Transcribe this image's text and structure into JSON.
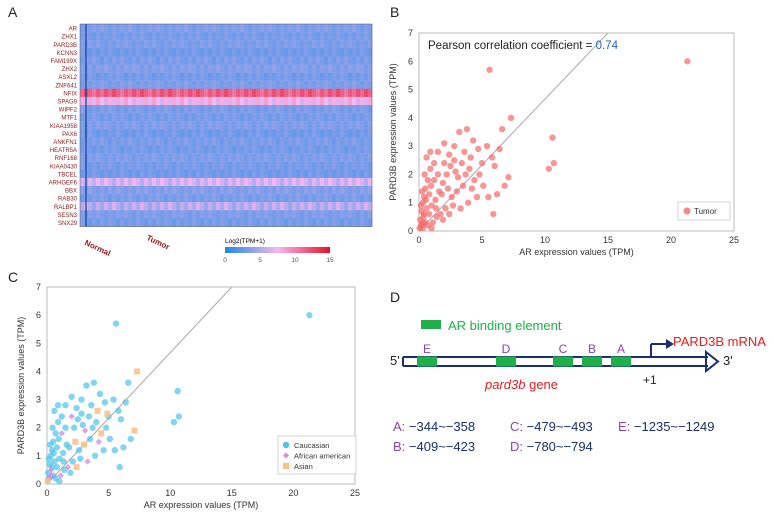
{
  "panel_labels": {
    "A": "A",
    "B": "B",
    "C": "C",
    "D": "D"
  },
  "chart_data": [
    {
      "id": "A",
      "type": "heatmap",
      "rows": [
        "AR",
        "ZHX1",
        "PARD3B",
        "KCNN3",
        "FAM199X",
        "ZHX2",
        "ASXL2",
        "ZNF641",
        "NFIX",
        "SPAG9",
        "WIPF2",
        "MTF1",
        "KIAA1958",
        "PAX6",
        "ANKFN1",
        "HEATR5A",
        "RNF168",
        "KIAA0430",
        "TBCEL",
        "ARHGEF6",
        "BBX",
        "RAB30",
        "RALBP1",
        "SESN3",
        "SNX29"
      ],
      "groups": [
        "Normal",
        "Tumor"
      ],
      "row_levels": [
        3.5,
        3.2,
        3.4,
        3.0,
        3.3,
        3.6,
        3.1,
        3.4,
        11.5,
        7.5,
        3.3,
        3.2,
        3.5,
        3.0,
        3.3,
        3.1,
        3.4,
        3.2,
        3.0,
        6.5,
        3.6,
        3.3,
        5.5,
        3.4,
        3.1
      ],
      "colorbar_title": "Log2(TPM+1)",
      "colorbar_ticks": [
        0,
        5,
        10,
        15
      ],
      "colorbar_colors": [
        "#1e88e5",
        "#f5b8f0",
        "#e8102a"
      ]
    },
    {
      "id": "B",
      "type": "scatter",
      "xlabel": "AR expression values (TPM)",
      "ylabel": "PARD3B expression values (TPM)",
      "xlim": [
        0,
        25
      ],
      "ylim": [
        0,
        7
      ],
      "xticks": [
        0,
        5,
        10,
        15,
        20,
        25
      ],
      "yticks": [
        0,
        1,
        2,
        3,
        4,
        5,
        6,
        7
      ],
      "annotation": "Pearson correlation coefficient = ",
      "annotation_value": "0.74",
      "fit_line": [
        [
          0,
          0
        ],
        [
          15,
          7
        ]
      ],
      "legend": [
        "Tumor"
      ],
      "series": [
        {
          "name": "Tumor",
          "color": "#f26b6b",
          "points": [
            [
              21.3,
              6.0
            ],
            [
              5.6,
              5.7
            ],
            [
              7.3,
              4.0
            ],
            [
              10.6,
              3.3
            ],
            [
              10.7,
              2.4
            ],
            [
              10.3,
              2.2
            ],
            [
              6.6,
              3.6
            ],
            [
              5.4,
              3.0
            ],
            [
              5.8,
              2.6
            ],
            [
              4.7,
              2.9
            ],
            [
              4.3,
              3.2
            ],
            [
              3.8,
              3.6
            ],
            [
              3.2,
              3.5
            ],
            [
              2.8,
              3.0
            ],
            [
              2.4,
              2.7
            ],
            [
              2.0,
              3.1
            ],
            [
              1.5,
              2.8
            ],
            [
              1.2,
              2.4
            ],
            [
              0.9,
              2.2
            ],
            [
              0.7,
              1.8
            ],
            [
              0.5,
              1.5
            ],
            [
              0.4,
              1.2
            ],
            [
              0.3,
              1.0
            ],
            [
              0.2,
              0.7
            ],
            [
              0.1,
              0.4
            ],
            [
              0.15,
              0.2
            ],
            [
              0.3,
              0.1
            ],
            [
              0.5,
              0.3
            ],
            [
              0.8,
              0.6
            ],
            [
              1.0,
              0.9
            ],
            [
              1.3,
              1.1
            ],
            [
              1.6,
              1.4
            ],
            [
              1.9,
              1.7
            ],
            [
              2.2,
              2.0
            ],
            [
              2.5,
              2.3
            ],
            [
              2.9,
              2.1
            ],
            [
              3.1,
              1.9
            ],
            [
              3.4,
              2.4
            ],
            [
              3.7,
              2.0
            ],
            [
              4.0,
              2.2
            ],
            [
              4.4,
              1.8
            ],
            [
              4.8,
              2.0
            ],
            [
              5.1,
              1.6
            ],
            [
              5.5,
              1.2
            ],
            [
              5.9,
              0.6
            ],
            [
              6.2,
              1.3
            ],
            [
              6.8,
              1.6
            ],
            [
              7.1,
              1.9
            ],
            [
              6.0,
              2.3
            ],
            [
              4.6,
              1.2
            ],
            [
              3.9,
              1.0
            ],
            [
              3.3,
              0.8
            ],
            [
              2.7,
              0.9
            ],
            [
              2.1,
              0.8
            ],
            [
              1.7,
              0.6
            ],
            [
              1.4,
              0.5
            ],
            [
              1.1,
              0.3
            ],
            [
              0.6,
              0.8
            ],
            [
              0.35,
              0.5
            ],
            [
              0.25,
              1.4
            ],
            [
              0.45,
              2.0
            ],
            [
              0.6,
              2.6
            ],
            [
              0.9,
              2.8
            ],
            [
              1.8,
              1.3
            ],
            [
              2.3,
              1.5
            ],
            [
              2.6,
              1.2
            ],
            [
              3.0,
              1.4
            ],
            [
              3.5,
              1.6
            ],
            [
              4.2,
              1.5
            ],
            [
              0.7,
              0.2
            ],
            [
              1.0,
              0.1
            ],
            [
              0.2,
              0.2
            ],
            [
              0.05,
              0.1
            ],
            [
              0.4,
              0.6
            ],
            [
              0.8,
              1.3
            ],
            [
              1.2,
              1.8
            ],
            [
              1.5,
              2.0
            ],
            [
              2.0,
              2.4
            ],
            [
              2.8,
              2.5
            ],
            [
              3.6,
              2.8
            ],
            [
              4.1,
              2.6
            ],
            [
              5.0,
              2.4
            ],
            [
              6.4,
              2.9
            ],
            [
              1.9,
              0.4
            ],
            [
              2.4,
              0.6
            ],
            [
              0.55,
              1.1
            ],
            [
              0.95,
              1.6
            ],
            [
              1.35,
              0.8
            ],
            [
              0.15,
              0.9
            ],
            [
              0.3,
              0.3
            ]
          ]
        }
      ]
    },
    {
      "id": "C",
      "type": "scatter",
      "xlabel": "AR expression values (TPM)",
      "ylabel": "PARD3B expression values (TPM)",
      "xlim": [
        0,
        25
      ],
      "ylim": [
        0,
        7
      ],
      "xticks": [
        0,
        5,
        10,
        15,
        20,
        25
      ],
      "yticks": [
        0,
        1,
        2,
        3,
        4,
        5,
        6,
        7
      ],
      "fit_line": [
        [
          0,
          0
        ],
        [
          15,
          7
        ]
      ],
      "legend": [
        "Caucasian",
        "African american",
        "Asian"
      ],
      "series": [
        {
          "name": "Caucasian",
          "color": "#4fc3e8",
          "marker": "circle",
          "points": [
            [
              21.3,
              6.0
            ],
            [
              5.6,
              5.7
            ],
            [
              10.6,
              3.3
            ],
            [
              10.7,
              2.4
            ],
            [
              10.3,
              2.2
            ],
            [
              6.6,
              3.6
            ],
            [
              5.4,
              3.0
            ],
            [
              5.8,
              2.6
            ],
            [
              4.7,
              2.9
            ],
            [
              4.3,
              3.2
            ],
            [
              3.8,
              3.6
            ],
            [
              3.2,
              3.5
            ],
            [
              2.8,
              3.0
            ],
            [
              2.4,
              2.7
            ],
            [
              2.0,
              3.1
            ],
            [
              1.5,
              2.8
            ],
            [
              1.2,
              2.4
            ],
            [
              0.9,
              2.2
            ],
            [
              0.7,
              1.8
            ],
            [
              0.5,
              1.5
            ],
            [
              0.4,
              1.2
            ],
            [
              0.3,
              1.0
            ],
            [
              0.2,
              0.7
            ],
            [
              0.1,
              0.4
            ],
            [
              0.15,
              0.2
            ],
            [
              0.5,
              0.3
            ],
            [
              0.8,
              0.6
            ],
            [
              1.0,
              0.9
            ],
            [
              1.3,
              1.1
            ],
            [
              1.6,
              1.4
            ],
            [
              2.2,
              2.0
            ],
            [
              2.5,
              2.3
            ],
            [
              2.9,
              2.1
            ],
            [
              3.4,
              2.4
            ],
            [
              3.7,
              2.0
            ],
            [
              4.0,
              2.2
            ],
            [
              4.8,
              2.0
            ],
            [
              5.1,
              1.6
            ],
            [
              5.5,
              1.2
            ],
            [
              5.9,
              0.6
            ],
            [
              6.2,
              1.3
            ],
            [
              6.8,
              1.6
            ],
            [
              6.0,
              2.3
            ],
            [
              4.6,
              1.2
            ],
            [
              3.9,
              1.0
            ],
            [
              2.7,
              0.9
            ],
            [
              2.1,
              0.8
            ],
            [
              1.4,
              0.5
            ],
            [
              0.6,
              0.8
            ],
            [
              0.25,
              1.4
            ],
            [
              0.45,
              2.0
            ],
            [
              0.6,
              2.6
            ],
            [
              0.9,
              2.8
            ],
            [
              1.8,
              1.3
            ],
            [
              2.6,
              1.2
            ],
            [
              3.5,
              1.6
            ],
            [
              0.7,
              0.2
            ],
            [
              1.0,
              0.1
            ],
            [
              0.4,
              0.6
            ],
            [
              0.8,
              1.3
            ],
            [
              1.5,
              2.0
            ],
            [
              2.8,
              2.5
            ],
            [
              3.6,
              2.8
            ],
            [
              5.0,
              2.4
            ],
            [
              6.4,
              2.9
            ],
            [
              1.9,
              0.4
            ],
            [
              0.55,
              1.1
            ],
            [
              0.95,
              1.6
            ],
            [
              1.35,
              0.8
            ],
            [
              0.15,
              0.9
            ]
          ]
        },
        {
          "name": "African american",
          "color": "#d98ce0",
          "marker": "diamond",
          "points": [
            [
              0.3,
              0.3
            ],
            [
              1.1,
              0.3
            ],
            [
              1.7,
              0.6
            ],
            [
              3.3,
              0.8
            ],
            [
              3.1,
              1.9
            ],
            [
              0.35,
              0.5
            ],
            [
              4.2,
              1.5
            ],
            [
              2.0,
              2.4
            ],
            [
              1.2,
              1.8
            ],
            [
              0.2,
              0.2
            ]
          ]
        },
        {
          "name": "Asian",
          "color": "#f8c08a",
          "marker": "square",
          "points": [
            [
              7.3,
              4.0
            ],
            [
              4.9,
              2.5
            ],
            [
              4.4,
              1.8
            ],
            [
              3.0,
              1.4
            ],
            [
              2.3,
              1.5
            ],
            [
              0.05,
              0.1
            ],
            [
              2.4,
              0.6
            ],
            [
              7.1,
              1.9
            ],
            [
              4.1,
              2.6
            ]
          ]
        }
      ]
    }
  ],
  "diagram": {
    "legend_label": "AR binding element",
    "mrna_label": "PARD3B mRNA",
    "gene_label": "pard3b",
    "gene_suffix": " gene",
    "five_prime": "5'",
    "three_prime": "3'",
    "tss_label": "+1",
    "elements": [
      "E",
      "D",
      "C",
      "B",
      "A"
    ],
    "positions": [
      {
        "label": "A:",
        "value": "−344~−358"
      },
      {
        "label": "C:",
        "value": "−479~−493"
      },
      {
        "label": "E:",
        "value": "−1235~−1249"
      },
      {
        "label": "B:",
        "value": "−409~−423"
      },
      {
        "label": "D:",
        "value": "−780~−794"
      }
    ],
    "colors": {
      "element": "#1fb04a",
      "mrna": "#e02020",
      "strand": "#1a2f6b",
      "letters": "#8e44ad"
    }
  }
}
